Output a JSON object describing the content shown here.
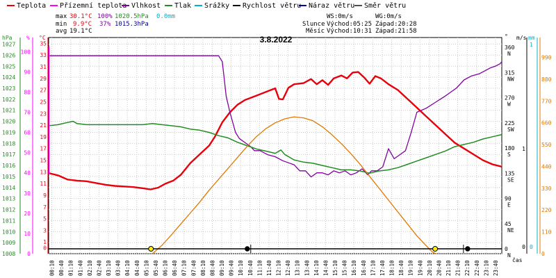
{
  "legend": [
    {
      "label": "Teplota",
      "color": "#e8000b"
    },
    {
      "label": "Přízemní teplota",
      "color": "#ff00ff"
    },
    {
      "label": "Vlhkost",
      "color": "#8000a0"
    },
    {
      "label": "Tlak",
      "color": "#228b22"
    },
    {
      "label": "Srážky",
      "color": "#00b0d0"
    },
    {
      "label": "Rychlost větru",
      "color": "#000000"
    },
    {
      "label": "Náraz větru",
      "color": "#000090"
    },
    {
      "label": "Směr větru",
      "color": "#505050"
    }
  ],
  "stats": {
    "max_label": "max",
    "max_temp": "30.1°C",
    "max_hum": "100%",
    "max_press": "1020.5hPa",
    "max_rain": "0.0mm",
    "min_label": "min",
    "min_temp": "9.9°C",
    "min_hum": "37%",
    "min_press": "1015.3hPa",
    "avg_label": "avg",
    "avg_temp": "19.1°C",
    "ws": "WS:0m/s",
    "wg": "WG:0m/s",
    "sun_label": "Slunce",
    "sun_rise": "Východ:05:25",
    "sun_set": "Západ:20:28",
    "moon_label": "Měsíc",
    "moon_rise": "Východ:10:31",
    "moon_set": "Západ:21:58"
  },
  "date": "3.8.2022",
  "colors": {
    "temp": "#e8000b",
    "hum": "#8000a0",
    "press": "#228b22",
    "sun": "#e07800",
    "rain_axis": "#00b0d0",
    "solar_axis": "#e07800",
    "grid": "#c8c8c8"
  },
  "chart_data": {
    "type": "line",
    "xlabel": "čas",
    "x_ticks": [
      "00:10",
      "00:40",
      "01:10",
      "01:40",
      "02:10",
      "02:40",
      "03:10",
      "03:40",
      "04:10",
      "04:40",
      "05:10",
      "05:40",
      "06:10",
      "06:40",
      "07:10",
      "07:40",
      "08:10",
      "08:40",
      "09:10",
      "09:40",
      "10:10",
      "10:40",
      "11:10",
      "11:40",
      "12:10",
      "12:40",
      "13:10",
      "13:40",
      "14:10",
      "14:40",
      "15:10",
      "15:40",
      "16:10",
      "16:40",
      "17:10",
      "17:40",
      "18:10",
      "18:40",
      "19:10",
      "19:40",
      "20:10",
      "20:40",
      "21:10",
      "21:40",
      "22:10",
      "22:40",
      "23:10",
      "23:40"
    ],
    "axes": {
      "pressure": {
        "label": "hPa",
        "ticks": [
          "1008",
          "1009",
          "1010",
          "1011",
          "1012",
          "1013",
          "1014",
          "1015",
          "1016",
          "1017",
          "1018",
          "1019",
          "1020",
          "1021",
          "1022",
          "1023",
          "1024",
          "1025",
          "1026",
          "1027"
        ],
        "range": [
          1008,
          1027.6
        ]
      },
      "humidity": {
        "label": "%",
        "ticks": [
          "0",
          "10",
          "20",
          "30",
          "40",
          "50",
          "60",
          "70",
          "80",
          "90",
          "100"
        ],
        "range": [
          0,
          107
        ]
      },
      "temperature": {
        "label": "°C",
        "ticks": [
          "0",
          "1",
          "3",
          "5",
          "7",
          "9",
          "11",
          "13",
          "15",
          "17",
          "19",
          "21",
          "23",
          "25",
          "27",
          "29",
          "31",
          "33",
          "35"
        ],
        "range": [
          -1,
          36
        ]
      },
      "direction": {
        "label": "°",
        "ticks": [
          "0",
          "45",
          "90",
          "135",
          "180",
          "225",
          "270",
          "315",
          "360"
        ],
        "names": [
          "N",
          "NE",
          "E",
          "SE",
          "S",
          "SW",
          "W",
          "NW",
          "N"
        ]
      },
      "wind": {
        "label": "m/s",
        "ticks": [
          "0",
          "1"
        ]
      },
      "rain": {
        "label": "mm",
        "ticks": [
          "0",
          "1"
        ]
      },
      "solar": {
        "ticks": [
          "0",
          "110",
          "220",
          "330",
          "440",
          "550",
          "660",
          "770",
          "880",
          "990"
        ]
      }
    },
    "series": [
      {
        "name": "Teplota",
        "axis": "temperature",
        "points": [
          [
            0,
            12.8
          ],
          [
            0.5,
            12.4
          ],
          [
            1,
            11.7
          ],
          [
            1.5,
            11.5
          ],
          [
            2,
            11.4
          ],
          [
            2.5,
            11.1
          ],
          [
            3,
            10.8
          ],
          [
            3.5,
            10.6
          ],
          [
            4,
            10.5
          ],
          [
            4.5,
            10.4
          ],
          [
            5,
            10.2
          ],
          [
            5.4,
            10.0
          ],
          [
            5.8,
            10.3
          ],
          [
            6.2,
            11.0
          ],
          [
            6.6,
            11.5
          ],
          [
            7,
            12.5
          ],
          [
            7.5,
            14.5
          ],
          [
            8,
            16.0
          ],
          [
            8.5,
            17.5
          ],
          [
            8.8,
            19.0
          ],
          [
            9.2,
            21.5
          ],
          [
            9.6,
            23.2
          ],
          [
            10,
            24.5
          ],
          [
            10.4,
            25.3
          ],
          [
            10.8,
            25.8
          ],
          [
            11.2,
            26.3
          ],
          [
            11.6,
            26.8
          ],
          [
            12,
            27.3
          ],
          [
            12.2,
            25.5
          ],
          [
            12.4,
            25.4
          ],
          [
            12.7,
            27.4
          ],
          [
            13,
            28.0
          ],
          [
            13.5,
            28.2
          ],
          [
            13.9,
            28.9
          ],
          [
            14.2,
            28.0
          ],
          [
            14.5,
            28.7
          ],
          [
            14.8,
            27.9
          ],
          [
            15.1,
            29.0
          ],
          [
            15.5,
            29.5
          ],
          [
            15.8,
            29.0
          ],
          [
            16.1,
            30.0
          ],
          [
            16.4,
            30.1
          ],
          [
            16.7,
            29.2
          ],
          [
            17,
            28.1
          ],
          [
            17.3,
            29.4
          ],
          [
            17.6,
            29.0
          ],
          [
            18,
            28.0
          ],
          [
            18.5,
            27.0
          ],
          [
            19,
            25.5
          ],
          [
            19.5,
            24.0
          ],
          [
            20,
            22.5
          ],
          [
            20.5,
            21.0
          ],
          [
            21,
            19.5
          ],
          [
            21.5,
            18.0
          ],
          [
            22,
            17.0
          ],
          [
            22.5,
            16.0
          ],
          [
            23,
            15.0
          ],
          [
            23.5,
            14.3
          ],
          [
            24,
            13.9
          ]
        ]
      },
      {
        "name": "Vlhkost",
        "axis": "humidity",
        "points": [
          [
            0,
            98
          ],
          [
            9.0,
            98
          ],
          [
            9.2,
            95
          ],
          [
            9.4,
            78
          ],
          [
            9.6,
            70
          ],
          [
            9.9,
            60
          ],
          [
            10.1,
            57
          ],
          [
            10.4,
            55
          ],
          [
            10.7,
            53
          ],
          [
            10.9,
            51
          ],
          [
            11.2,
            51
          ],
          [
            11.6,
            49
          ],
          [
            12,
            48
          ],
          [
            12.4,
            46
          ],
          [
            12.7,
            45
          ],
          [
            13,
            44
          ],
          [
            13.3,
            41
          ],
          [
            13.6,
            41
          ],
          [
            13.9,
            38
          ],
          [
            14.2,
            40
          ],
          [
            14.5,
            40
          ],
          [
            14.8,
            39
          ],
          [
            15.1,
            41
          ],
          [
            15.4,
            40
          ],
          [
            15.7,
            41
          ],
          [
            16,
            39
          ],
          [
            16.3,
            40
          ],
          [
            16.6,
            42
          ],
          [
            16.9,
            39
          ],
          [
            17.1,
            41
          ],
          [
            17.4,
            41
          ],
          [
            17.7,
            43
          ],
          [
            18,
            52
          ],
          [
            18.3,
            47
          ],
          [
            18.6,
            49
          ],
          [
            18.9,
            51
          ],
          [
            19.2,
            60
          ],
          [
            19.5,
            70
          ],
          [
            20,
            72
          ],
          [
            20.5,
            75
          ],
          [
            21,
            78
          ],
          [
            21.3,
            80
          ],
          [
            21.6,
            82
          ],
          [
            22,
            86
          ],
          [
            22.4,
            88
          ],
          [
            22.8,
            89
          ],
          [
            23,
            90
          ],
          [
            23.4,
            92
          ],
          [
            23.7,
            93
          ],
          [
            23.9,
            94
          ],
          [
            24,
            95
          ]
        ]
      },
      {
        "name": "Tlak",
        "axis": "pressure",
        "points": [
          [
            0,
            1019.6
          ],
          [
            0.5,
            1019.7
          ],
          [
            1,
            1019.9
          ],
          [
            1.3,
            1020.0
          ],
          [
            1.5,
            1019.8
          ],
          [
            2,
            1019.7
          ],
          [
            3,
            1019.7
          ],
          [
            4,
            1019.7
          ],
          [
            5,
            1019.7
          ],
          [
            5.5,
            1019.8
          ],
          [
            6,
            1019.7
          ],
          [
            6.5,
            1019.6
          ],
          [
            7,
            1019.5
          ],
          [
            7.5,
            1019.3
          ],
          [
            8,
            1019.2
          ],
          [
            8.5,
            1019.0
          ],
          [
            9,
            1018.7
          ],
          [
            9.5,
            1018.5
          ],
          [
            10,
            1018.1
          ],
          [
            10.5,
            1017.8
          ],
          [
            11,
            1017.5
          ],
          [
            11.5,
            1017.3
          ],
          [
            12,
            1017.1
          ],
          [
            12.3,
            1017.4
          ],
          [
            12.5,
            1017.0
          ],
          [
            13,
            1016.5
          ],
          [
            13.5,
            1016.3
          ],
          [
            14,
            1016.2
          ],
          [
            14.5,
            1016.0
          ],
          [
            15,
            1015.8
          ],
          [
            15.5,
            1015.6
          ],
          [
            16,
            1015.6
          ],
          [
            16.5,
            1015.5
          ],
          [
            17,
            1015.3
          ],
          [
            17.5,
            1015.5
          ],
          [
            18,
            1015.6
          ],
          [
            18.5,
            1015.8
          ],
          [
            19,
            1016.1
          ],
          [
            19.5,
            1016.4
          ],
          [
            20,
            1016.7
          ],
          [
            20.5,
            1017.0
          ],
          [
            21,
            1017.3
          ],
          [
            21.5,
            1017.7
          ],
          [
            22,
            1017.9
          ],
          [
            22.5,
            1018.1
          ],
          [
            23,
            1018.4
          ],
          [
            23.5,
            1018.6
          ],
          [
            24,
            1018.8
          ]
        ]
      },
      {
        "name": "Solar",
        "axis": "solar",
        "points": [
          [
            5.5,
            0
          ],
          [
            6,
            42
          ],
          [
            6.5,
            95
          ],
          [
            7,
            150
          ],
          [
            7.5,
            205
          ],
          [
            8,
            260
          ],
          [
            8.5,
            320
          ],
          [
            9,
            375
          ],
          [
            9.5,
            430
          ],
          [
            10,
            485
          ],
          [
            10.5,
            540
          ],
          [
            11,
            590
          ],
          [
            11.5,
            630
          ],
          [
            12,
            660
          ],
          [
            12.5,
            680
          ],
          [
            13,
            690
          ],
          [
            13.5,
            685
          ],
          [
            14,
            670
          ],
          [
            14.5,
            640
          ],
          [
            15,
            600
          ],
          [
            15.5,
            555
          ],
          [
            16,
            505
          ],
          [
            16.5,
            450
          ],
          [
            17,
            390
          ],
          [
            17.5,
            330
          ],
          [
            18,
            270
          ],
          [
            18.5,
            210
          ],
          [
            19,
            150
          ],
          [
            19.5,
            90
          ],
          [
            20,
            40
          ],
          [
            20.3,
            10
          ],
          [
            20.5,
            0
          ]
        ]
      }
    ],
    "markers": {
      "sunrise": 5.42,
      "sunset": 20.47,
      "moonrise": 10.52,
      "moonset": 21.97
    }
  }
}
